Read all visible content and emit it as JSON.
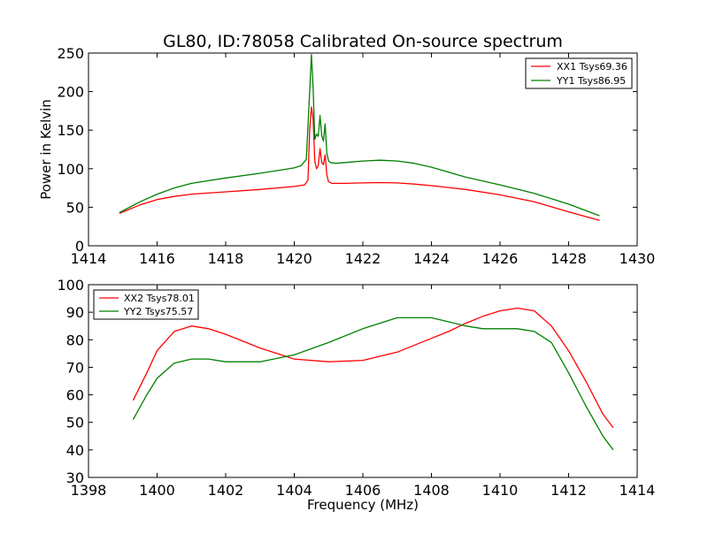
{
  "chart_data": [
    {
      "type": "line",
      "title": "GL80, ID:78058 Calibrated On-source spectrum",
      "xlabel": "",
      "ylabel": "Power in Kelvin",
      "xlim": [
        1414,
        1430
      ],
      "ylim": [
        0,
        250
      ],
      "xticks": [
        1414,
        1416,
        1418,
        1420,
        1422,
        1424,
        1426,
        1428,
        1430
      ],
      "yticks": [
        0,
        50,
        100,
        150,
        200,
        250
      ],
      "legend_position": "top-right",
      "series": [
        {
          "name": "XX1 Tsys69.36",
          "color": "#ff0000",
          "x": [
            1414.9,
            1415.5,
            1416,
            1416.5,
            1417,
            1418,
            1419,
            1420,
            1420.3,
            1420.4,
            1420.45,
            1420.5,
            1420.55,
            1420.6,
            1420.65,
            1420.7,
            1420.75,
            1420.8,
            1420.85,
            1420.9,
            1420.95,
            1421.0,
            1421.1,
            1421.5,
            1422,
            1422.5,
            1423,
            1423.5,
            1424,
            1425,
            1426,
            1427,
            1428,
            1428.9
          ],
          "y": [
            42,
            53,
            60,
            64,
            67,
            70,
            73,
            77,
            79,
            85,
            150,
            180,
            165,
            110,
            100,
            104,
            126,
            108,
            105,
            118,
            92,
            83,
            81,
            81,
            81.5,
            82,
            81.5,
            80,
            78,
            73,
            66,
            57,
            44,
            33
          ]
        },
        {
          "name": "YY1 Tsys86.95",
          "color": "#008000",
          "x": [
            1414.9,
            1415.5,
            1416,
            1416.5,
            1417,
            1418,
            1419,
            1420,
            1420.2,
            1420.35,
            1420.45,
            1420.5,
            1420.55,
            1420.6,
            1420.65,
            1420.7,
            1420.75,
            1420.8,
            1420.85,
            1420.9,
            1420.95,
            1421.0,
            1421.05,
            1421.2,
            1421.5,
            1422,
            1422.5,
            1423,
            1423.5,
            1424,
            1425,
            1426,
            1427,
            1428,
            1428.9
          ],
          "y": [
            43,
            57,
            67,
            75,
            81,
            88,
            94,
            101,
            104,
            112,
            200,
            248,
            205,
            138,
            145,
            142,
            169,
            143,
            136,
            158,
            120,
            110,
            108,
            107,
            108,
            110,
            111,
            110,
            107,
            102,
            89,
            79,
            68,
            54,
            39
          ]
        }
      ]
    },
    {
      "type": "line",
      "title": "",
      "xlabel": "Frequency (MHz)",
      "ylabel": "",
      "xlim": [
        1398,
        1414
      ],
      "ylim": [
        30,
        100
      ],
      "xticks": [
        1398,
        1400,
        1402,
        1404,
        1406,
        1408,
        1410,
        1412,
        1414
      ],
      "yticks": [
        30,
        40,
        50,
        60,
        70,
        80,
        90,
        100
      ],
      "legend_position": "top-left",
      "series": [
        {
          "name": "XX2 Tsys78.01",
          "color": "#ff0000",
          "x": [
            1399.3,
            1399.7,
            1400,
            1400.5,
            1401,
            1401.5,
            1402,
            1403,
            1404,
            1405,
            1406,
            1407,
            1408,
            1408.5,
            1409,
            1409.5,
            1410,
            1410.5,
            1411,
            1411.5,
            1412,
            1412.5,
            1413,
            1413.3
          ],
          "y": [
            58,
            68,
            76,
            83,
            85,
            84,
            82,
            77,
            73,
            72,
            72.5,
            75.5,
            80.5,
            83,
            86,
            88.5,
            90.5,
            91.5,
            90.5,
            85,
            76,
            65,
            53,
            48
          ]
        },
        {
          "name": "YY2 Tsys75.57",
          "color": "#008000",
          "x": [
            1399.3,
            1399.7,
            1400,
            1400.5,
            1401,
            1401.5,
            1402,
            1403,
            1404,
            1405,
            1406,
            1407,
            1408,
            1408.5,
            1409,
            1409.5,
            1410,
            1410.5,
            1411,
            1411.5,
            1412,
            1412.5,
            1413,
            1413.3
          ],
          "y": [
            51,
            60,
            66,
            71.5,
            73,
            73,
            72,
            72,
            74.5,
            79,
            84,
            88,
            88,
            86.5,
            85,
            84,
            84,
            84,
            83,
            79,
            68,
            56,
            45,
            40
          ]
        }
      ]
    }
  ]
}
